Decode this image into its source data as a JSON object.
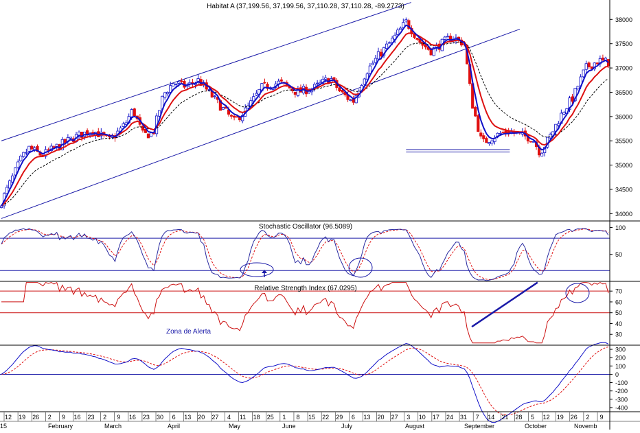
{
  "colors": {
    "background": "#ffffff",
    "frame": "#000000",
    "channel": "#1a1aa8",
    "ma_blue": "#1010c8",
    "ma_red": "#dd1111",
    "ma_black_dashed": "#000000",
    "bar_up_outline": "#1010c8",
    "bar_down_fill": "#e01010",
    "stoch_k": "#2a2aa0",
    "stoch_d": "#e01010",
    "rsi_line": "#cc1111",
    "osc_line": "#1010c8",
    "osc_signal": "#e01010",
    "level_blue": "#1a1aa8",
    "level_red": "#cc1111"
  },
  "chart_data": [
    {
      "id": "price",
      "type": "candlestick",
      "title": "Habitat A (37,199.56, 37,199.56, 37,110.28, 37,110.28, -89.2773)",
      "y_ticks": [
        34000,
        34500,
        35000,
        35500,
        36000,
        36500,
        37000,
        37500,
        38000
      ],
      "ylim": [
        33850,
        38400
      ],
      "grid": false,
      "overlays": [
        "moving average (blue)",
        "moving average (red)",
        "moving average (black dashed)",
        "trend channel lines",
        "support lines"
      ],
      "channel_lines": [
        {
          "from": {
            "bar": 0,
            "value": 35500
          },
          "to": {
            "bar": 162,
            "value": 38350
          }
        },
        {
          "from": {
            "bar": 0,
            "value": 33900
          },
          "to": {
            "bar": 205,
            "value": 37800
          }
        }
      ],
      "support_lines": [
        {
          "from_bar": 160,
          "to_bar": 201,
          "value": 35320
        },
        {
          "from_bar": 160,
          "to_bar": 201,
          "value": 35270
        }
      ],
      "bars_description": "daily price bars reconstructed from approximate trajectory",
      "bars": []
    },
    {
      "id": "stochastic",
      "type": "line",
      "title": "Stochastic Oscillator (96.5089)",
      "y_ticks": [
        50,
        100
      ],
      "ylim": [
        0,
        112
      ],
      "levels": [
        80,
        20
      ],
      "series": [
        {
          "name": "",
          "values": []
        },
        {
          "name": "",
          "values": []
        }
      ]
    },
    {
      "id": "rsi",
      "type": "line",
      "title": "Relative Strength Index (67.0295)",
      "y_ticks": [
        30,
        40,
        50,
        60,
        70
      ],
      "ylim": [
        20,
        79
      ],
      "levels": [
        70,
        50
      ],
      "annotation": "Zona de Alerta",
      "trendline": {
        "from": {
          "bar": 186,
          "value": 37
        },
        "to": {
          "bar": 212,
          "value": 78
        }
      },
      "series": [
        {
          "name": "",
          "values": []
        }
      ]
    },
    {
      "id": "oscillator",
      "type": "line",
      "title": "",
      "y_ticks": [
        300,
        200,
        100,
        0,
        -100,
        -200,
        -300,
        -400
      ],
      "ylim": [
        -450,
        350
      ],
      "levels": [
        0
      ],
      "series": [
        {
          "name": "",
          "values": []
        },
        {
          "name": "",
          "values": []
        }
      ]
    }
  ],
  "x_axis": {
    "day_ticks": [
      "12",
      "19",
      "26",
      "2",
      "9",
      "16",
      "23",
      "2",
      "9",
      "16",
      "23",
      "30",
      "6",
      "13",
      "20",
      "27",
      "4",
      "11",
      "18",
      "25",
      "1",
      "8",
      "15",
      "22",
      "29",
      "6",
      "13",
      "20",
      "27",
      "3",
      "10",
      "17",
      "24",
      "31",
      "7",
      "14",
      "21",
      "28",
      "5",
      "12",
      "19",
      "26",
      "2",
      "9"
    ],
    "month_labels": [
      "15",
      "February",
      "March",
      "April",
      "May",
      "June",
      "July",
      "August",
      "September",
      "October",
      "Novemb"
    ]
  }
}
